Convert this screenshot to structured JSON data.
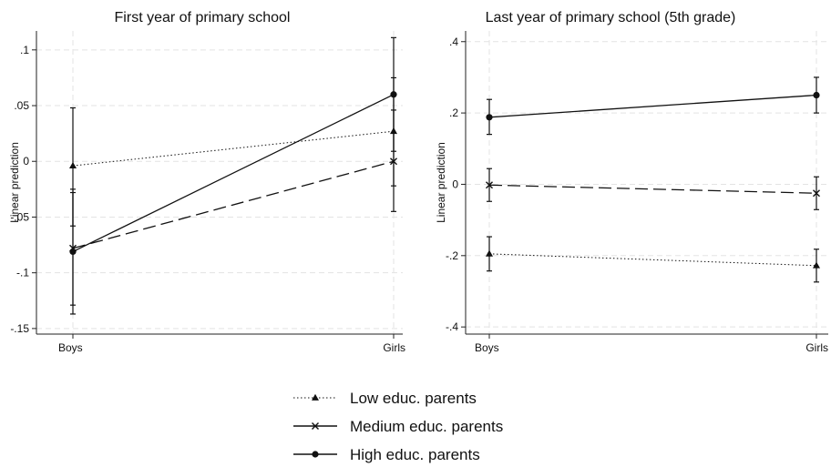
{
  "chart_data": [
    {
      "type": "line",
      "title": "First year of primary school",
      "ylabel": "Linear prediction",
      "xlabel": "",
      "categories": [
        "Boys",
        "Girls"
      ],
      "ylim": [
        -0.155,
        0.117
      ],
      "yticks": [
        0.1,
        0.05,
        0,
        -0.05,
        -0.1,
        -0.15
      ],
      "ytick_labels": [
        ".1",
        ".05",
        "0",
        "-.05",
        "-.1",
        "-.15"
      ],
      "grid": true,
      "series": [
        {
          "name": "Low educ. parents",
          "style": "dotted",
          "marker": "triangle",
          "values": [
            -0.004,
            0.027
          ],
          "ci_low": [
            -0.058,
            -0.022
          ],
          "ci_high": [
            0.048,
            0.075
          ]
        },
        {
          "name": "Medium educ. parents",
          "style": "dashed",
          "marker": "x",
          "values": [
            -0.078,
            0.0
          ],
          "ci_low": [
            -0.129,
            -0.045
          ],
          "ci_high": [
            -0.025,
            0.046
          ]
        },
        {
          "name": "High educ. parents",
          "style": "solid",
          "marker": "circle",
          "values": [
            -0.081,
            0.06
          ],
          "ci_low": [
            -0.137,
            0.009
          ],
          "ci_high": [
            -0.028,
            0.111
          ]
        }
      ]
    },
    {
      "type": "line",
      "title": "Last year of primary school (5th grade)",
      "ylabel": "Linear prediction",
      "xlabel": "",
      "categories": [
        "Boys",
        "Girls"
      ],
      "ylim": [
        -0.42,
        0.43
      ],
      "yticks": [
        0.4,
        0.2,
        0,
        -0.2,
        -0.4
      ],
      "ytick_labels": [
        ".4",
        ".2",
        "0",
        "-.2",
        "-.4"
      ],
      "grid": true,
      "series": [
        {
          "name": "Low educ. parents",
          "style": "dotted",
          "marker": "triangle",
          "values": [
            -0.195,
            -0.228
          ],
          "ci_low": [
            -0.243,
            -0.274
          ],
          "ci_high": [
            -0.147,
            -0.182
          ]
        },
        {
          "name": "Medium educ. parents",
          "style": "dashed",
          "marker": "x",
          "values": [
            -0.002,
            -0.025
          ],
          "ci_low": [
            -0.048,
            -0.071
          ],
          "ci_high": [
            0.044,
            0.021
          ]
        },
        {
          "name": "High educ. parents",
          "style": "solid",
          "marker": "circle",
          "values": [
            0.188,
            0.25
          ],
          "ci_low": [
            0.14,
            0.2
          ],
          "ci_high": [
            0.238,
            0.3
          ]
        }
      ]
    }
  ],
  "legend": {
    "placement": "bottom-center",
    "items": [
      {
        "label": "Low educ. parents",
        "style": "dotted",
        "marker": "triangle"
      },
      {
        "label": "Medium educ. parents",
        "style": "dashed",
        "marker": "x"
      },
      {
        "label": "High educ. parents",
        "style": "solid",
        "marker": "circle"
      }
    ]
  },
  "colors": {
    "line": "#111111",
    "grid": "#e3e3e3",
    "axis": "#222222"
  }
}
